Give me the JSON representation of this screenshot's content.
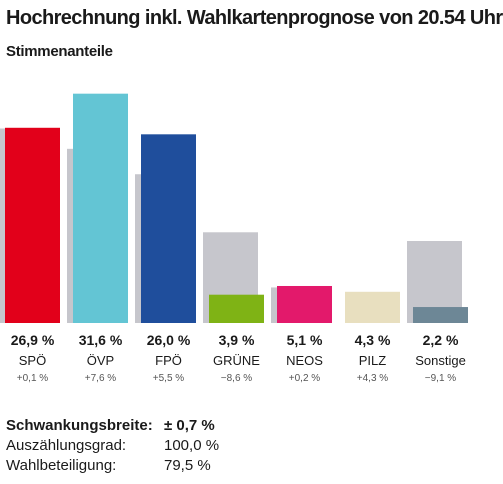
{
  "header": {
    "title": "Hochrechnung inkl. Wahlkartenprognose von 20.54 Uhr",
    "subtitle": "Stimmenanteile"
  },
  "chart_data": {
    "type": "bar",
    "categories": [
      "SPÖ",
      "ÖVP",
      "FPÖ",
      "GRÜNE",
      "NEOS",
      "PILZ",
      "Sonstige"
    ],
    "series": [
      {
        "values": [
          26.9,
          31.6,
          26.0,
          3.9,
          5.1,
          4.3,
          2.2
        ]
      },
      {
        "values": [
          26.8,
          24.0,
          20.5,
          12.5,
          4.9,
          0.0,
          11.3
        ]
      }
    ],
    "value_labels": [
      "26,9 %",
      "31,6 %",
      "26,0 %",
      "3,9 %",
      "5,1 %",
      "4,3 %",
      "2,2 %"
    ],
    "change_labels": [
      "+0,1 %",
      "+7,6 %",
      "+5,5 %",
      "−8,6 %",
      "+0,2 %",
      "+4,3 %",
      "−9,1 %"
    ],
    "colors": [
      "#e2001a",
      "#63c5d4",
      "#1f4e9c",
      "#7fb315",
      "#e3196b",
      "#e8dfbf",
      "#6d8796"
    ],
    "previous_color": "#c6c6cc",
    "ylim": [
      0,
      35
    ],
    "grid": false
  },
  "stats": {
    "rows": [
      {
        "label": "Schwankungsbreite:",
        "value": "± 0,7 %"
      },
      {
        "label": "Auszählungsgrad:",
        "value": "100,0 %"
      },
      {
        "label": "Wahlbeteiligung:",
        "value": "79,5 %"
      }
    ]
  }
}
